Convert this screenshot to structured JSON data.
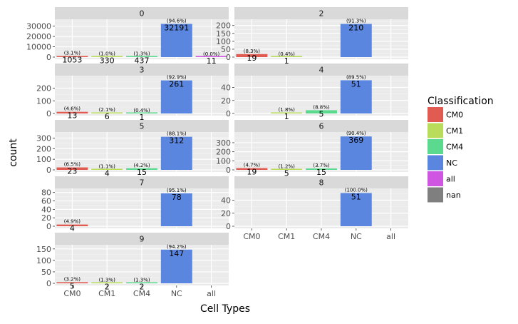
{
  "chart_data": {
    "type": "bar",
    "xlabel": "Cell Types",
    "ylabel": "count",
    "categories": [
      "CM0",
      "CM1",
      "CM4",
      "NC",
      "all"
    ],
    "legend": {
      "title": "Classification",
      "placement": "right",
      "entries": [
        {
          "label": "CM0",
          "color": "#e05c52"
        },
        {
          "label": "CM1",
          "color": "#b9dc5a"
        },
        {
          "label": "CM4",
          "color": "#5ad98f"
        },
        {
          "label": "NC",
          "color": "#5a86e0"
        },
        {
          "label": "all",
          "color": "#cf56e0"
        },
        {
          "label": "nan",
          "color": "#7f7f7f"
        }
      ]
    },
    "panels": [
      {
        "title": "0",
        "yticks": [
          0,
          10000,
          20000,
          30000
        ],
        "ylim": [
          0,
          36000
        ],
        "values": [
          1053,
          330,
          437,
          32191,
          11
        ],
        "value_labels": [
          "1053",
          "330",
          "437",
          "32191",
          "11"
        ],
        "pct_labels": [
          "(3.1%)",
          "(1.0%)",
          "(1.3%)",
          "(94.6%)",
          "(0.0%)"
        ]
      },
      {
        "title": "2",
        "yticks": [
          0,
          50,
          100,
          150,
          200
        ],
        "ylim": [
          0,
          235
        ],
        "values": [
          19,
          1,
          0,
          210,
          0
        ],
        "value_labels": [
          "19",
          "1",
          "",
          "210",
          ""
        ],
        "pct_labels": [
          "(8.3%)",
          "(0.4%)",
          "",
          "(91.3%)",
          ""
        ]
      },
      {
        "title": "3",
        "yticks": [
          0,
          100,
          200
        ],
        "ylim": [
          0,
          293
        ],
        "values": [
          13,
          6,
          1,
          261,
          0
        ],
        "value_labels": [
          "13",
          "6",
          "1",
          "261",
          ""
        ],
        "pct_labels": [
          "(4.6%)",
          "(2.1%)",
          "(0.4%)",
          "(92.9%)",
          ""
        ]
      },
      {
        "title": "4",
        "yticks": [
          0,
          20,
          40
        ],
        "ylim": [
          0,
          57
        ],
        "values": [
          0,
          1,
          5,
          51,
          0
        ],
        "value_labels": [
          "",
          "1",
          "5",
          "51",
          ""
        ],
        "pct_labels": [
          "",
          "(1.8%)",
          "(8.8%)",
          "(89.5%)",
          ""
        ]
      },
      {
        "title": "5",
        "yticks": [
          0,
          100,
          200,
          300
        ],
        "ylim": [
          0,
          350
        ],
        "values": [
          23,
          4,
          15,
          312,
          0
        ],
        "value_labels": [
          "23",
          "4",
          "15",
          "312",
          ""
        ],
        "pct_labels": [
          "(6.5%)",
          "(1.1%)",
          "(4.2%)",
          "(88.1%)",
          ""
        ]
      },
      {
        "title": "6",
        "yticks": [
          0,
          100,
          200,
          300
        ],
        "ylim": [
          0,
          410
        ],
        "values": [
          19,
          5,
          15,
          369,
          0
        ],
        "value_labels": [
          "19",
          "5",
          "15",
          "369",
          ""
        ],
        "pct_labels": [
          "(4.7%)",
          "(1.2%)",
          "(3.7%)",
          "(90.4%)",
          ""
        ]
      },
      {
        "title": "7",
        "yticks": [
          0,
          20,
          40,
          60,
          80
        ],
        "ylim": [
          0,
          88
        ],
        "values": [
          4,
          0,
          0,
          78,
          0
        ],
        "value_labels": [
          "4",
          "",
          "",
          "78",
          ""
        ],
        "pct_labels": [
          "(4.9%)",
          "",
          "",
          "(95.1%)",
          ""
        ]
      },
      {
        "title": "8",
        "yticks": [
          0,
          20,
          40
        ],
        "ylim": [
          0,
          57
        ],
        "values": [
          0,
          0,
          0,
          51,
          0
        ],
        "value_labels": [
          "",
          "",
          "",
          "51",
          ""
        ],
        "pct_labels": [
          "",
          "",
          "",
          "(100.0%)",
          ""
        ]
      },
      {
        "title": "9",
        "yticks": [
          0,
          50,
          100,
          150
        ],
        "ylim": [
          0,
          165
        ],
        "values": [
          5,
          2,
          2,
          147,
          0
        ],
        "value_labels": [
          "5",
          "2",
          "2",
          "147",
          ""
        ],
        "pct_labels": [
          "(3.2%)",
          "(1.3%)",
          "(1.3%)",
          "(94.2%)",
          ""
        ]
      }
    ]
  }
}
